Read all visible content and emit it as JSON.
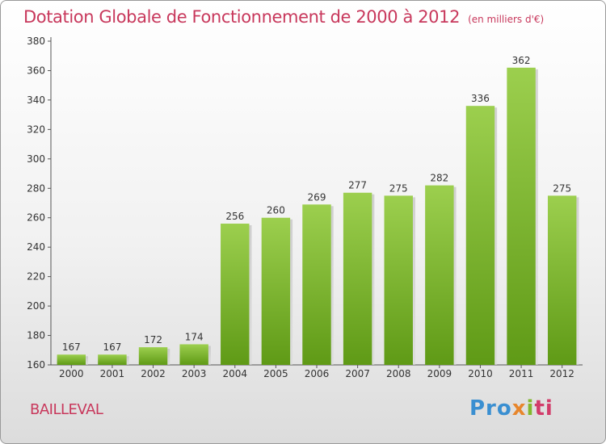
{
  "chart_data": {
    "type": "bar",
    "title": "Dotation Globale de Fonctionnement de 2000 à 2012",
    "subtitle": "(en milliers d'€)",
    "categories": [
      "2000",
      "2001",
      "2002",
      "2003",
      "2004",
      "2005",
      "2006",
      "2007",
      "2008",
      "2009",
      "2010",
      "2011",
      "2012"
    ],
    "values": [
      167,
      167,
      172,
      174,
      256,
      260,
      269,
      277,
      275,
      282,
      336,
      362,
      275
    ],
    "ylim": [
      160,
      380
    ],
    "yticks": [
      160,
      180,
      200,
      220,
      240,
      260,
      280,
      300,
      320,
      340,
      360,
      380
    ],
    "grid": false,
    "bar_color": "#8cc63f",
    "bar_color_dark": "#5f9a16",
    "title_color": "#c8385c"
  },
  "commune": "BAILLEVAL",
  "logo": {
    "p1": "Pro",
    "p2": "x",
    "p3": "i",
    "p4": "ti"
  }
}
